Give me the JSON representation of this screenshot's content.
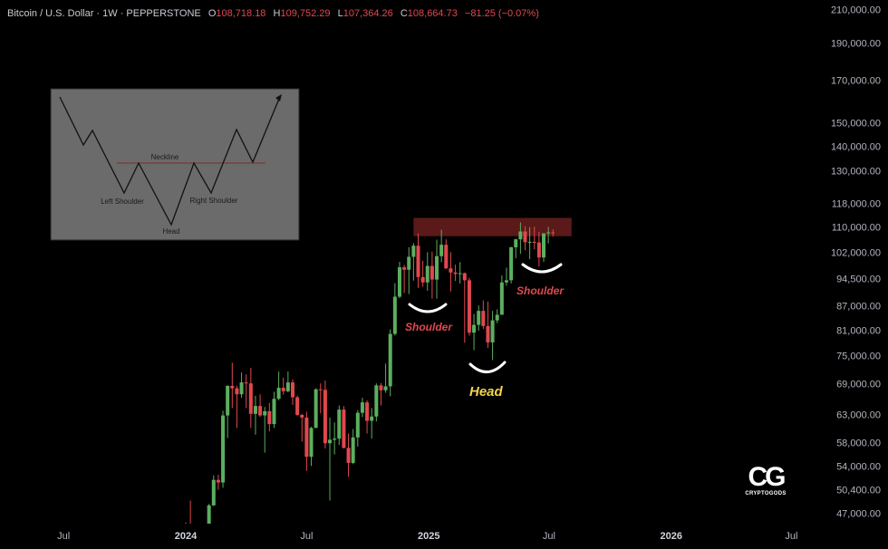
{
  "header": {
    "symbol": "Bitcoin / U.S. Dollar · 1W · PEPPERSTONE",
    "open_label": "O",
    "open": "108,718.18",
    "high_label": "H",
    "high": "109,752.29",
    "low_label": "L",
    "low": "107,364.26",
    "close_label": "C",
    "close": "108,664.73",
    "change": "−81.25 (−0.07%)"
  },
  "chart_data": {
    "type": "candlestick",
    "interval": "1W",
    "y_scale": "log",
    "ylim": [
      45500,
      212000
    ],
    "y_ticks": [
      "210,000.00",
      "190,000.00",
      "170,000.00",
      "150,000.00",
      "140,000.00",
      "130,000.00",
      "118,000.00",
      "110,000.00",
      "102,000.00",
      "94,500.00",
      "87,000.00",
      "81,000.00",
      "75,000.00",
      "69,000.00",
      "63,000.00",
      "58,000.00",
      "54,000.00",
      "50,400.00",
      "47,000.00"
    ],
    "y_tick_values": [
      210000,
      190000,
      170000,
      150000,
      140000,
      130000,
      118000,
      110000,
      102000,
      94500,
      87000,
      81000,
      75000,
      69000,
      63000,
      58000,
      54000,
      50400,
      47000
    ],
    "x_ticks": [
      {
        "label": "Jul",
        "date": "2023-07-01",
        "year": false
      },
      {
        "label": "2024",
        "date": "2024-01-01",
        "year": true
      },
      {
        "label": "Jul",
        "date": "2024-07-01",
        "year": false
      },
      {
        "label": "2025",
        "date": "2025-01-01",
        "year": true
      },
      {
        "label": "Jul",
        "date": "2025-07-01",
        "year": false
      },
      {
        "label": "2026",
        "date": "2026-01-01",
        "year": true
      },
      {
        "label": "Jul",
        "date": "2026-07-01",
        "year": false
      }
    ],
    "colors": {
      "up": "#5cae5f",
      "down": "#e0484f",
      "background": "#000000"
    },
    "candles_columns": [
      "week",
      "open",
      "high",
      "low",
      "close"
    ],
    "candles": [
      [
        "2024-01-01",
        42300,
        45900,
        40700,
        43900
      ],
      [
        "2024-01-08",
        43900,
        49000,
        41500,
        41700
      ],
      [
        "2024-01-15",
        41700,
        43600,
        40500,
        41600
      ],
      [
        "2024-01-22",
        41600,
        42300,
        38500,
        42000
      ],
      [
        "2024-01-29",
        42000,
        43900,
        41800,
        42600
      ],
      [
        "2024-02-05",
        42600,
        48500,
        42300,
        48300
      ],
      [
        "2024-02-12",
        48300,
        52800,
        48200,
        52100
      ],
      [
        "2024-02-19",
        52100,
        52900,
        50600,
        51700
      ],
      [
        "2024-02-26",
        51700,
        64000,
        50900,
        63100
      ],
      [
        "2024-03-04",
        63100,
        69000,
        59000,
        68900
      ],
      [
        "2024-03-11",
        68900,
        73800,
        64500,
        68400
      ],
      [
        "2024-03-18",
        68400,
        68900,
        60800,
        67200
      ],
      [
        "2024-03-25",
        67200,
        71700,
        66500,
        69600
      ],
      [
        "2024-04-01",
        69600,
        71300,
        64500,
        69400
      ],
      [
        "2024-04-08",
        69400,
        72700,
        60800,
        63400
      ],
      [
        "2024-04-15",
        63400,
        66900,
        59600,
        64900
      ],
      [
        "2024-04-22",
        64900,
        67200,
        62800,
        63100
      ],
      [
        "2024-04-29",
        63100,
        64700,
        56500,
        63900
      ],
      [
        "2024-05-06",
        63900,
        65500,
        60200,
        61500
      ],
      [
        "2024-05-13",
        61500,
        67700,
        60800,
        66300
      ],
      [
        "2024-05-20",
        66300,
        71900,
        66000,
        68500
      ],
      [
        "2024-05-27",
        68500,
        70600,
        67100,
        67800
      ],
      [
        "2024-06-03",
        67800,
        71900,
        67600,
        69600
      ],
      [
        "2024-06-10",
        69600,
        70200,
        65100,
        66600
      ],
      [
        "2024-06-17",
        66600,
        66900,
        63000,
        63200
      ],
      [
        "2024-06-24",
        63200,
        63400,
        58400,
        62700
      ],
      [
        "2024-07-01",
        62700,
        63800,
        53500,
        55800
      ],
      [
        "2024-07-08",
        55800,
        61000,
        54300,
        60800
      ],
      [
        "2024-07-15",
        60800,
        68400,
        60800,
        68200
      ],
      [
        "2024-07-22",
        68200,
        69400,
        63500,
        68100
      ],
      [
        "2024-07-29",
        68100,
        70000,
        57200,
        58100
      ],
      [
        "2024-08-05",
        58100,
        62700,
        49000,
        58700
      ],
      [
        "2024-08-12",
        58700,
        61800,
        56200,
        58900
      ],
      [
        "2024-08-19",
        58900,
        65000,
        57800,
        64200
      ],
      [
        "2024-08-26",
        64200,
        64900,
        57200,
        57300
      ],
      [
        "2024-09-02",
        57300,
        59800,
        52600,
        54800
      ],
      [
        "2024-09-09",
        54800,
        60600,
        54600,
        59100
      ],
      [
        "2024-09-16",
        59100,
        64100,
        57500,
        63600
      ],
      [
        "2024-09-23",
        63600,
        66500,
        62800,
        65600
      ],
      [
        "2024-09-30",
        65600,
        66000,
        59800,
        62100
      ],
      [
        "2024-10-07",
        62100,
        64500,
        58900,
        62900
      ],
      [
        "2024-10-14",
        62900,
        69400,
        62000,
        69000
      ],
      [
        "2024-10-21",
        69000,
        69500,
        65000,
        68000
      ],
      [
        "2024-10-28",
        68000,
        73600,
        67500,
        68800
      ],
      [
        "2024-11-04",
        68800,
        81500,
        66800,
        80400
      ],
      [
        "2024-11-11",
        80400,
        93500,
        80000,
        89800
      ],
      [
        "2024-11-18",
        89800,
        99600,
        89400,
        98000
      ],
      [
        "2024-11-25",
        98000,
        98700,
        90800,
        97300
      ],
      [
        "2024-12-02",
        97300,
        104000,
        90500,
        101100
      ],
      [
        "2024-12-09",
        101100,
        105300,
        94200,
        104500
      ],
      [
        "2024-12-16",
        104500,
        108400,
        92200,
        95200
      ],
      [
        "2024-12-23",
        95200,
        99900,
        92500,
        93700
      ],
      [
        "2024-12-30",
        93700,
        102500,
        91400,
        98400
      ],
      [
        "2025-01-06",
        98400,
        102700,
        89300,
        94500
      ],
      [
        "2025-01-13",
        94500,
        106400,
        89300,
        101300
      ],
      [
        "2025-01-20",
        101300,
        109600,
        99500,
        104800
      ],
      [
        "2025-01-27",
        104800,
        106500,
        97500,
        97700
      ],
      [
        "2025-02-03",
        97700,
        102500,
        91200,
        96500
      ],
      [
        "2025-02-10",
        96500,
        98800,
        94100,
        96100
      ],
      [
        "2025-02-17",
        96100,
        99500,
        93400,
        96300
      ],
      [
        "2025-02-24",
        96300,
        96500,
        78300,
        94300
      ],
      [
        "2025-03-03",
        94300,
        95000,
        80000,
        80700
      ],
      [
        "2025-03-10",
        80700,
        85300,
        76600,
        82600
      ],
      [
        "2025-03-17",
        82600,
        87500,
        81200,
        86100
      ],
      [
        "2025-03-24",
        86100,
        88800,
        81600,
        82300
      ],
      [
        "2025-03-31",
        82300,
        88500,
        77100,
        78400
      ],
      [
        "2025-04-07",
        78400,
        86100,
        74400,
        83700
      ],
      [
        "2025-04-14",
        83700,
        86500,
        83000,
        85100
      ],
      [
        "2025-04-21",
        85100,
        95700,
        85100,
        93700
      ],
      [
        "2025-04-28",
        93700,
        97900,
        92800,
        94300
      ],
      [
        "2025-05-05",
        94300,
        104200,
        93400,
        104000
      ],
      [
        "2025-05-12",
        104000,
        106700,
        100700,
        106500
      ],
      [
        "2025-05-19",
        106500,
        112000,
        102000,
        109000
      ],
      [
        "2025-05-26",
        109000,
        110700,
        103100,
        105600
      ],
      [
        "2025-06-02",
        105600,
        110400,
        100400,
        105700
      ],
      [
        "2025-06-09",
        105700,
        110600,
        103400,
        105500
      ],
      [
        "2025-06-16",
        105500,
        108900,
        98200,
        100900
      ],
      [
        "2025-06-23",
        100900,
        108500,
        99600,
        108400
      ],
      [
        "2025-06-30",
        108400,
        110500,
        105200,
        108700
      ],
      [
        "2025-07-07",
        108718.18,
        109752.29,
        107364.26,
        108664.73
      ]
    ],
    "resistance_zone": {
      "from": "2024-12-09",
      "to": "2025-08-04",
      "low": 107500,
      "high": 113500,
      "color": "#6b1d1d"
    },
    "annotations": [
      {
        "text": "Shoulder",
        "color": "#e0484f"
      },
      {
        "text": "Head",
        "color": "#f5d547"
      },
      {
        "text": "Shoulder",
        "color": "#e0484f"
      }
    ]
  },
  "inset": {
    "neckline": "Neckline",
    "left_shoulder": "Left Shoulder",
    "right_shoulder": "Right Shoulder",
    "head": "Head"
  },
  "logo": {
    "mark": "CG",
    "name": "CRYPTOGODS"
  }
}
